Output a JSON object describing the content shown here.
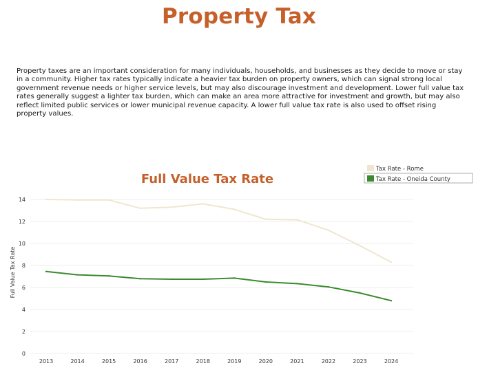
{
  "page": {
    "title": "Property Tax",
    "intro": "Property taxes are an important consideration for many individuals, households, and businesses as they decide to move or stay in a community. Higher tax rates typically indicate a heavier tax burden on property owners, which can signal strong local government revenue needs or higher service levels, but may also discourage investment and development. Lower full value tax rates generally suggest a lighter tax burden, which can make an area more attractive for investment and growth, but may also reflect limited public services or lower municipal revenue capacity. A lower full value tax rate is also used to offset rising property values."
  },
  "colors": {
    "title": "#c5602b",
    "chart_title": "#c5602b",
    "rome": "#efe6cf",
    "oneida": "#3a8a2e",
    "grid": "#eeeeee"
  },
  "chart_data": {
    "type": "line",
    "title": "Full Value Tax Rate",
    "xlabel": "",
    "ylabel": "Full Value Tax Rate",
    "x": [
      "2013",
      "2014",
      "2015",
      "2016",
      "2017",
      "2018",
      "2019",
      "2020",
      "2021",
      "2022",
      "2023",
      "2024"
    ],
    "ylim": [
      0,
      14.5
    ],
    "yticks": [
      0,
      2,
      4,
      6,
      8,
      10,
      12,
      14
    ],
    "grid": true,
    "legend_position": "top-right",
    "series": [
      {
        "name": "Tax Rate - Rome",
        "color": "#efe6cf",
        "values": [
          14.0,
          13.95,
          13.95,
          13.2,
          13.3,
          13.6,
          13.1,
          12.2,
          12.15,
          11.2,
          9.8,
          8.3
        ]
      },
      {
        "name": "Tax Rate - Oneida County",
        "color": "#3a8a2e",
        "values": [
          7.45,
          7.15,
          7.05,
          6.8,
          6.75,
          6.75,
          6.85,
          6.5,
          6.35,
          6.05,
          5.5,
          4.8
        ]
      }
    ]
  }
}
